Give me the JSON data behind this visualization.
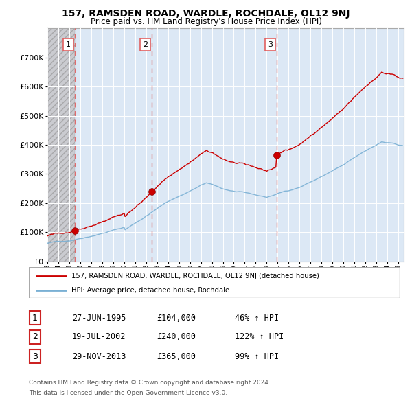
{
  "title": "157, RAMSDEN ROAD, WARDLE, ROCHDALE, OL12 9NJ",
  "subtitle": "Price paid vs. HM Land Registry's House Price Index (HPI)",
  "sale_prices": [
    104000,
    240000,
    365000
  ],
  "sale_year_floats": [
    1995.487,
    2002.543,
    2013.912
  ],
  "sale_labels": [
    "1",
    "2",
    "3"
  ],
  "legend_label_red": "157, RAMSDEN ROAD, WARDLE, ROCHDALE, OL12 9NJ (detached house)",
  "legend_label_blue": "HPI: Average price, detached house, Rochdale",
  "table_rows": [
    [
      "1",
      "27-JUN-1995",
      "£104,000",
      "46% ↑ HPI"
    ],
    [
      "2",
      "19-JUL-2002",
      "£240,000",
      "122% ↑ HPI"
    ],
    [
      "3",
      "29-NOV-2013",
      "£365,000",
      "99% ↑ HPI"
    ]
  ],
  "footnote1": "Contains HM Land Registry data © Crown copyright and database right 2024.",
  "footnote2": "This data is licensed under the Open Government Licence v3.0.",
  "ylim": [
    0,
    800000
  ],
  "yticks": [
    0,
    100000,
    200000,
    300000,
    400000,
    500000,
    600000,
    700000
  ],
  "ytick_labels": [
    "£0",
    "£100K",
    "£200K",
    "£300K",
    "£400K",
    "£500K",
    "£600K",
    "£700K"
  ],
  "xstart": 1993,
  "xend": 2025.5,
  "red_line_color": "#cc0000",
  "blue_line_color": "#7ab0d4",
  "dashed_line_color": "#e06060",
  "plot_bg_color": "#dce8f5",
  "hatch_bg_color": "#c8c8c8"
}
